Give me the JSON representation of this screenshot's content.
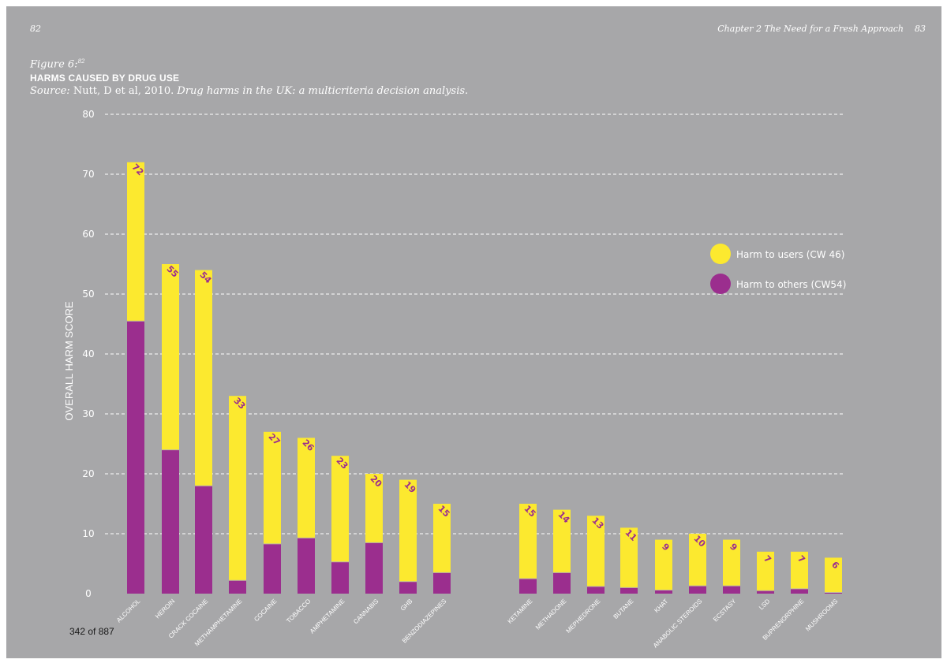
{
  "page": {
    "left_number": "82",
    "running_head": "Chapter 2  The Need for a Fresh Approach",
    "right_number": "83",
    "figure_label": "Figure 6:",
    "figure_footnote": "82",
    "source_prefix": "Source:",
    "source_plain": " Nutt, D et al, 2010. ",
    "source_italic": "Drug harms in the UK: a multicriteria decision analysis.",
    "page_counter": "342 of 887"
  },
  "colors": {
    "background": "#a7a7a9",
    "harm_to_users": "#fce92f",
    "harm_to_others": "#9b2e8e",
    "text": "#ffffff"
  },
  "chart_data": {
    "type": "bar",
    "stacked": true,
    "title": "HARMS CAUSED BY DRUG USE",
    "ylabel": "OVERALL HARM SCORE",
    "xlabel": "",
    "ylim": [
      0,
      80
    ],
    "yticks": [
      0,
      10,
      20,
      30,
      40,
      50,
      60,
      70,
      80
    ],
    "grid": true,
    "legend_position": "right",
    "categories": [
      "ALCOHOL",
      "HEROIN",
      "CRACK COCAINE",
      "METHAMPHETAMINE",
      "COCAINE",
      "TOBACCO",
      "AMPHETAMINE",
      "CANNABIS",
      "GHB",
      "BENZODIAZEPINES",
      "KETAMINE",
      "METHADONE",
      "MEPHEDRONE",
      "BUTANE",
      "KHAT",
      "ANABOLIC STEROIDS",
      "ECSTASY",
      "LSD",
      "BUPRENORPHINE",
      "MUSHROOMS"
    ],
    "series": [
      {
        "name": "Harm to others (CW54)",
        "values": [
          45.5,
          24,
          18,
          2.2,
          8.3,
          9.3,
          5.3,
          8.5,
          2,
          3.5,
          2.5,
          3.5,
          1.2,
          1,
          0.6,
          1.3,
          1.3,
          0.5,
          0.8,
          0.2
        ]
      },
      {
        "name": "Harm to users (CW 46)",
        "values": [
          26.5,
          31,
          36,
          30.8,
          18.7,
          16.7,
          17.7,
          11.5,
          17,
          11.5,
          12.5,
          10.5,
          11.8,
          10,
          8.4,
          8.7,
          7.7,
          6.5,
          6.2,
          5.8
        ]
      }
    ],
    "totals": [
      72,
      55,
      54,
      33,
      27,
      26,
      23,
      20,
      19,
      15,
      15,
      14,
      13,
      11,
      9,
      10,
      9,
      7,
      7,
      6
    ]
  }
}
